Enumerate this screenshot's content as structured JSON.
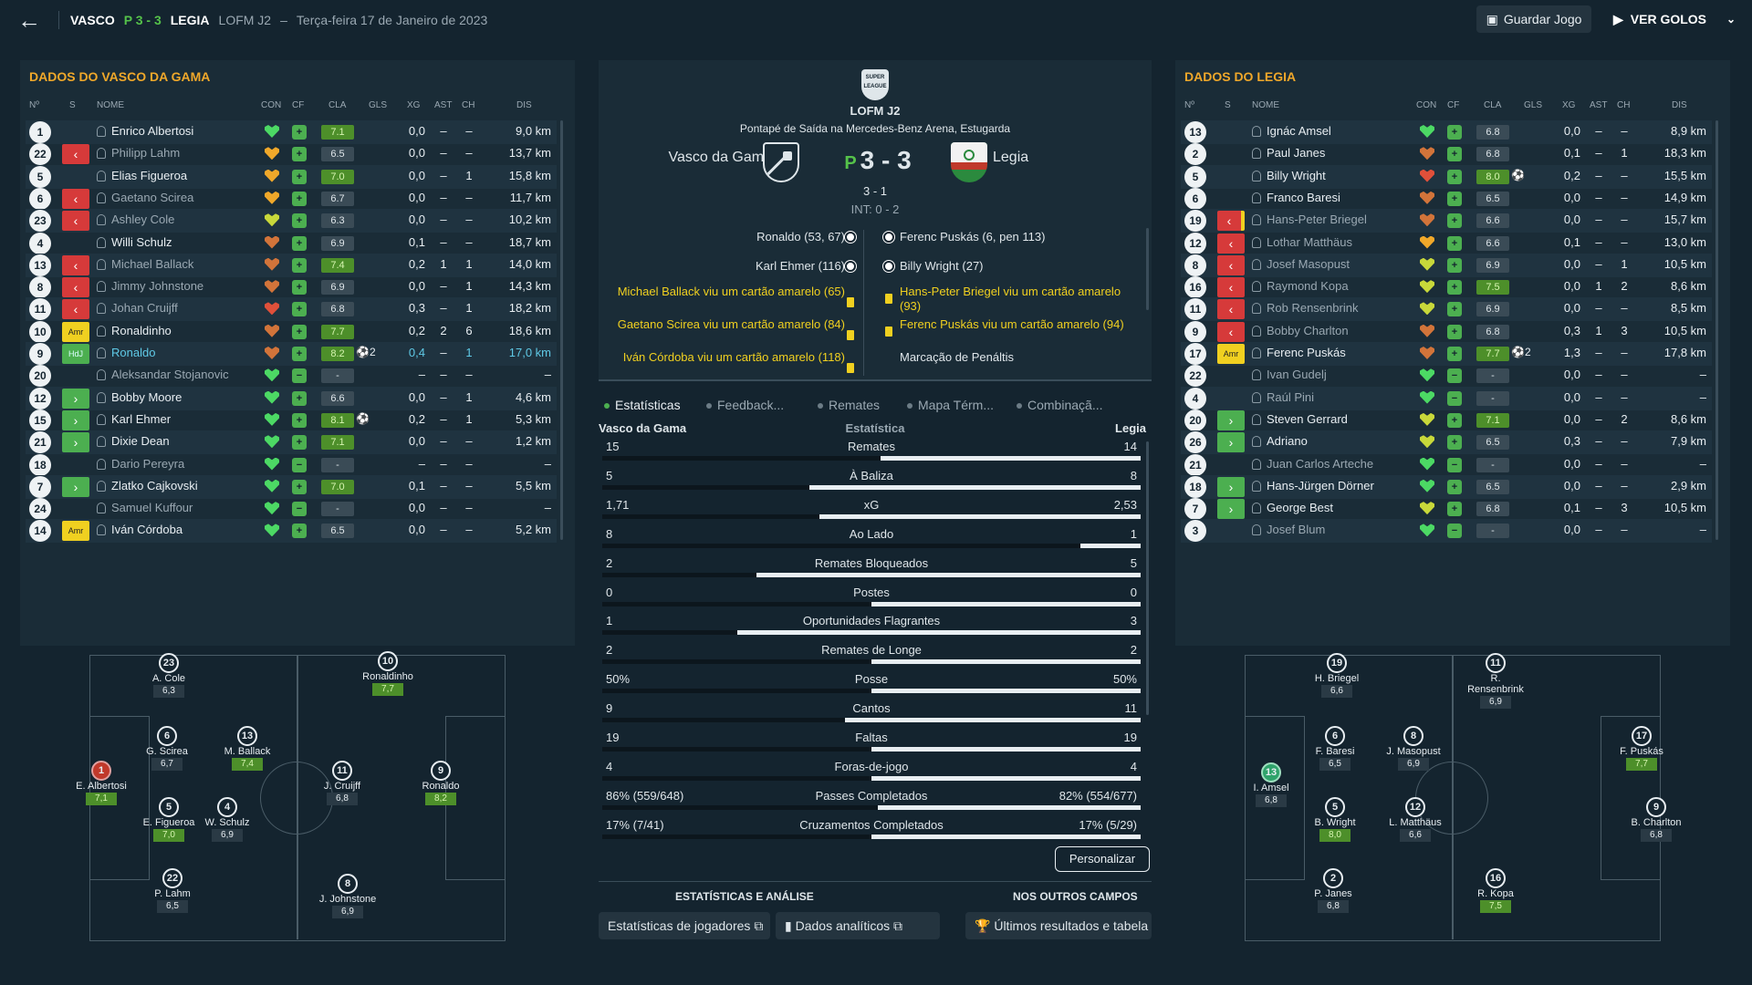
{
  "topbar": {
    "back_icon": "back-arrow-icon",
    "home": "VASCO",
    "score": "P 3 - 3",
    "away": "LEGIA",
    "competition": "LOFM J2",
    "dash": "–",
    "date": "Terça-feira 17 de Janeiro de 2023",
    "save_label": "Guardar Jogo",
    "goals_label": "VER GOLOS"
  },
  "left": {
    "title": "DADOS DO VASCO DA GAMA",
    "headers": {
      "num": "Nº",
      "s": "S",
      "name": "NOME",
      "con": "CON",
      "cf": "CF",
      "cla": "CLA",
      "gls": "GLS",
      "xg": "XG",
      "ast": "AST",
      "ch": "CH",
      "dis": "DIS"
    },
    "players": [
      {
        "num": "1",
        "sub": "",
        "name": "Enrico Albertosi",
        "con": "green",
        "cla": "7.1",
        "ratingGood": true,
        "gls": "",
        "xg": "0,0",
        "ast": "–",
        "ch": "–",
        "dis": "9,0 km",
        "dim": false
      },
      {
        "num": "22",
        "sub": "out",
        "name": "Philipp Lahm",
        "con": "orange",
        "cla": "6.5",
        "ratingGood": false,
        "gls": "",
        "xg": "0,0",
        "ast": "–",
        "ch": "–",
        "dis": "13,7 km",
        "dim": true
      },
      {
        "num": "5",
        "sub": "",
        "name": "Elias Figueroa",
        "con": "orange",
        "cla": "7.0",
        "ratingGood": true,
        "gls": "",
        "xg": "0,0",
        "ast": "–",
        "ch": "1",
        "dis": "15,8 km",
        "dim": false
      },
      {
        "num": "6",
        "sub": "out",
        "name": "Gaetano Scirea",
        "con": "orange",
        "cla": "6.7",
        "ratingGood": false,
        "gls": "",
        "xg": "0,0",
        "ast": "–",
        "ch": "–",
        "dis": "11,7 km",
        "dim": true
      },
      {
        "num": "23",
        "sub": "out",
        "name": "Ashley Cole",
        "con": "yellow",
        "cla": "6.3",
        "ratingGood": false,
        "gls": "",
        "xg": "0,0",
        "ast": "–",
        "ch": "–",
        "dis": "10,2 km",
        "dim": true
      },
      {
        "num": "4",
        "sub": "",
        "name": "Willi Schulz",
        "con": "darkorange",
        "cla": "6.9",
        "ratingGood": false,
        "gls": "",
        "xg": "0,1",
        "ast": "–",
        "ch": "–",
        "dis": "18,7 km",
        "dim": false
      },
      {
        "num": "13",
        "sub": "out",
        "name": "Michael Ballack",
        "con": "darkorange",
        "cla": "7.4",
        "ratingGood": true,
        "gls": "",
        "xg": "0,2",
        "ast": "1",
        "ch": "1",
        "dis": "14,0 km",
        "dim": true
      },
      {
        "num": "8",
        "sub": "out",
        "name": "Jimmy Johnstone",
        "con": "darkorange",
        "cla": "6.9",
        "ratingGood": false,
        "gls": "",
        "xg": "0,0",
        "ast": "–",
        "ch": "1",
        "dis": "14,3 km",
        "dim": true
      },
      {
        "num": "11",
        "sub": "out",
        "name": "Johan Cruijff",
        "con": "red",
        "cla": "6.8",
        "ratingGood": false,
        "gls": "",
        "xg": "0,3",
        "ast": "–",
        "ch": "1",
        "dis": "18,2 km",
        "dim": true
      },
      {
        "num": "10",
        "sub": "amr",
        "name": "Ronaldinho",
        "con": "darkorange",
        "cla": "7.7",
        "ratingGood": true,
        "gls": "",
        "xg": "0,2",
        "ast": "2",
        "ch": "6",
        "dis": "18,6 km",
        "dim": false
      },
      {
        "num": "9",
        "sub": "hdj",
        "name": "Ronaldo",
        "con": "darkorange",
        "cla": "8.2",
        "ratingGood": true,
        "gls": "2",
        "xg": "0,4",
        "ast": "–",
        "ch": "1",
        "dis": "17,0 km",
        "dim": false,
        "hl": true
      },
      {
        "num": "20",
        "sub": "",
        "name": "Aleksandar Stojanovic",
        "con": "green",
        "cla": "-",
        "ratingGood": false,
        "gls": "",
        "xg": "–",
        "ast": "–",
        "ch": "–",
        "dis": "–",
        "dim": true
      },
      {
        "num": "12",
        "sub": "in",
        "name": "Bobby Moore",
        "con": "green",
        "cla": "6.6",
        "ratingGood": false,
        "gls": "",
        "xg": "0,0",
        "ast": "–",
        "ch": "1",
        "dis": "4,6 km",
        "dim": false
      },
      {
        "num": "15",
        "sub": "in",
        "name": "Karl Ehmer",
        "con": "green",
        "cla": "8.1",
        "ratingGood": true,
        "gls": "ball",
        "xg": "0,2",
        "ast": "–",
        "ch": "1",
        "dis": "5,3 km",
        "dim": false
      },
      {
        "num": "21",
        "sub": "in",
        "name": "Dixie Dean",
        "con": "green",
        "cla": "7.1",
        "ratingGood": true,
        "gls": "",
        "xg": "0,0",
        "ast": "–",
        "ch": "–",
        "dis": "1,2 km",
        "dim": false
      },
      {
        "num": "18",
        "sub": "",
        "name": "Dario Pereyra",
        "con": "green",
        "cla": "-",
        "ratingGood": false,
        "gls": "",
        "xg": "–",
        "ast": "–",
        "ch": "–",
        "dis": "–",
        "dim": true
      },
      {
        "num": "7",
        "sub": "in",
        "name": "Zlatko Cajkovski",
        "con": "green",
        "cla": "7.0",
        "ratingGood": true,
        "gls": "",
        "xg": "0,1",
        "ast": "–",
        "ch": "–",
        "dis": "5,5 km",
        "dim": false
      },
      {
        "num": "24",
        "sub": "",
        "name": "Samuel Kuffour",
        "con": "green",
        "cla": "-",
        "ratingGood": false,
        "gls": "",
        "xg": "0,0",
        "ast": "–",
        "ch": "–",
        "dis": "–",
        "dim": true
      },
      {
        "num": "14",
        "sub": "amr",
        "name": "Iván Córdoba",
        "con": "green",
        "cla": "6.5",
        "ratingGood": false,
        "gls": "",
        "xg": "0,0",
        "ast": "–",
        "ch": "–",
        "dis": "5,2 km",
        "dim": false
      }
    ],
    "pitch": [
      {
        "num": "23",
        "name": "A. Cole",
        "rating": "6,3",
        "good": false
      },
      {
        "num": "10",
        "name": "Ronaldinho",
        "rating": "7,7",
        "good": true
      },
      {
        "num": "6",
        "name": "G. Scirea",
        "rating": "6,7",
        "good": false
      },
      {
        "num": "13",
        "name": "M. Ballack",
        "rating": "7,4",
        "good": true
      },
      {
        "num": "1",
        "name": "E. Albertosi",
        "rating": "7,1",
        "good": true,
        "gk": true
      },
      {
        "num": "11",
        "name": "J. Cruijff",
        "rating": "6,8",
        "good": false
      },
      {
        "num": "9",
        "name": "Ronaldo",
        "rating": "8,2",
        "good": true
      },
      {
        "num": "5",
        "name": "E. Figueroa",
        "rating": "7,0",
        "good": true
      },
      {
        "num": "4",
        "name": "W. Schulz",
        "rating": "6,9",
        "good": false
      },
      {
        "num": "22",
        "name": "P. Lahm",
        "rating": "6,5",
        "good": false
      },
      {
        "num": "8",
        "name": "J. Johnstone",
        "rating": "6,9",
        "good": false
      }
    ]
  },
  "right": {
    "title": "DADOS DO LEGIA",
    "players": [
      {
        "num": "13",
        "sub": "",
        "name": "Ignác Amsel",
        "con": "green",
        "cla": "6.8",
        "ratingGood": false,
        "gls": "",
        "xg": "0,0",
        "ast": "–",
        "ch": "–",
        "dis": "8,9 km",
        "dim": false
      },
      {
        "num": "2",
        "sub": "",
        "name": "Paul Janes",
        "con": "darkorange",
        "cla": "6.8",
        "ratingGood": false,
        "gls": "",
        "xg": "0,1",
        "ast": "–",
        "ch": "1",
        "dis": "18,3 km",
        "dim": false
      },
      {
        "num": "5",
        "sub": "",
        "name": "Billy Wright",
        "con": "red",
        "cla": "8.0",
        "ratingGood": true,
        "gls": "ball",
        "xg": "0,2",
        "ast": "–",
        "ch": "–",
        "dis": "15,5 km",
        "dim": false
      },
      {
        "num": "6",
        "sub": "",
        "name": "Franco Baresi",
        "con": "darkorange",
        "cla": "6.5",
        "ratingGood": false,
        "gls": "",
        "xg": "0,0",
        "ast": "–",
        "ch": "–",
        "dis": "14,9 km",
        "dim": false
      },
      {
        "num": "19",
        "sub": "outy",
        "name": "Hans-Peter Briegel",
        "con": "darkorange",
        "cla": "6.6",
        "ratingGood": false,
        "gls": "",
        "xg": "0,0",
        "ast": "–",
        "ch": "–",
        "dis": "15,7 km",
        "dim": true
      },
      {
        "num": "12",
        "sub": "out",
        "name": "Lothar Matthäus",
        "con": "orange",
        "cla": "6.6",
        "ratingGood": false,
        "gls": "",
        "xg": "0,1",
        "ast": "–",
        "ch": "–",
        "dis": "13,0 km",
        "dim": true
      },
      {
        "num": "8",
        "sub": "out",
        "name": "Josef Masopust",
        "con": "yellow",
        "cla": "6.9",
        "ratingGood": false,
        "gls": "",
        "xg": "0,0",
        "ast": "–",
        "ch": "1",
        "dis": "10,5 km",
        "dim": true
      },
      {
        "num": "16",
        "sub": "out",
        "name": "Raymond Kopa",
        "con": "yellow",
        "cla": "7.5",
        "ratingGood": true,
        "gls": "",
        "xg": "0,0",
        "ast": "1",
        "ch": "2",
        "dis": "8,6 km",
        "dim": true
      },
      {
        "num": "11",
        "sub": "out",
        "name": "Rob Rensenbrink",
        "con": "yellow",
        "cla": "6.9",
        "ratingGood": false,
        "gls": "",
        "xg": "0,0",
        "ast": "–",
        "ch": "–",
        "dis": "8,5 km",
        "dim": true
      },
      {
        "num": "9",
        "sub": "out",
        "name": "Bobby Charlton",
        "con": "darkorange",
        "cla": "6.8",
        "ratingGood": false,
        "gls": "",
        "xg": "0,3",
        "ast": "1",
        "ch": "3",
        "dis": "10,5 km",
        "dim": true
      },
      {
        "num": "17",
        "sub": "amr",
        "name": "Ferenc Puskás",
        "con": "darkorange",
        "cla": "7.7",
        "ratingGood": true,
        "gls": "2",
        "xg": "1,3",
        "ast": "–",
        "ch": "–",
        "dis": "17,8 km",
        "dim": false
      },
      {
        "num": "22",
        "sub": "",
        "name": "Ivan Gudelj",
        "con": "green",
        "cla": "-",
        "ratingGood": false,
        "gls": "",
        "xg": "0,0",
        "ast": "–",
        "ch": "–",
        "dis": "–",
        "dim": true
      },
      {
        "num": "4",
        "sub": "",
        "name": "Raúl Pini",
        "con": "green",
        "cla": "-",
        "ratingGood": false,
        "gls": "",
        "xg": "0,0",
        "ast": "–",
        "ch": "–",
        "dis": "–",
        "dim": true
      },
      {
        "num": "20",
        "sub": "in",
        "name": "Steven Gerrard",
        "con": "yellow",
        "cla": "7.1",
        "ratingGood": true,
        "gls": "",
        "xg": "0,0",
        "ast": "–",
        "ch": "2",
        "dis": "8,6 km",
        "dim": false
      },
      {
        "num": "26",
        "sub": "in",
        "name": "Adriano",
        "con": "yellow",
        "cla": "6.5",
        "ratingGood": false,
        "gls": "",
        "xg": "0,3",
        "ast": "–",
        "ch": "–",
        "dis": "7,9 km",
        "dim": false
      },
      {
        "num": "21",
        "sub": "",
        "name": "Juan Carlos Arteche",
        "con": "green",
        "cla": "-",
        "ratingGood": false,
        "gls": "",
        "xg": "0,0",
        "ast": "–",
        "ch": "–",
        "dis": "–",
        "dim": true
      },
      {
        "num": "18",
        "sub": "in",
        "name": "Hans-Jürgen Dörner",
        "con": "green",
        "cla": "6.5",
        "ratingGood": false,
        "gls": "",
        "xg": "0,0",
        "ast": "–",
        "ch": "–",
        "dis": "2,9 km",
        "dim": false
      },
      {
        "num": "7",
        "sub": "in",
        "name": "George Best",
        "con": "yellow",
        "cla": "6.8",
        "ratingGood": false,
        "gls": "",
        "xg": "0,1",
        "ast": "–",
        "ch": "3",
        "dis": "10,5 km",
        "dim": false
      },
      {
        "num": "3",
        "sub": "",
        "name": "Josef Blum",
        "con": "green",
        "cla": "-",
        "ratingGood": false,
        "gls": "",
        "xg": "0,0",
        "ast": "–",
        "ch": "–",
        "dis": "–",
        "dim": true
      }
    ],
    "pitch": [
      {
        "num": "19",
        "name": "H. Briegel",
        "rating": "6,6",
        "good": false
      },
      {
        "num": "11",
        "name": "R. Rensenbrink",
        "rating": "6,9",
        "good": false
      },
      {
        "num": "6",
        "name": "F. Baresi",
        "rating": "6,5",
        "good": false
      },
      {
        "num": "8",
        "name": "J. Masopust",
        "rating": "6,9",
        "good": false
      },
      {
        "num": "17",
        "name": "F. Puskás",
        "rating": "7,7",
        "good": true
      },
      {
        "num": "13",
        "name": "I. Amsel",
        "rating": "6,8",
        "good": false,
        "gk": true
      },
      {
        "num": "5",
        "name": "B. Wright",
        "rating": "8,0",
        "good": true
      },
      {
        "num": "12",
        "name": "L. Matthäus",
        "rating": "6,6",
        "good": false
      },
      {
        "num": "9",
        "name": "B. Charlton",
        "rating": "6,8",
        "good": false
      },
      {
        "num": "2",
        "name": "P. Janes",
        "rating": "6,8",
        "good": false
      },
      {
        "num": "16",
        "name": "R. Kopa",
        "rating": "7,5",
        "good": true
      }
    ]
  },
  "match": {
    "league_logo": "SUPER LEAGUE",
    "league": "LOFM J2",
    "venue": "Pontapé de Saída na Mercedes-Benz Arena, Estugarda",
    "home": "Vasco da Gama",
    "away": "Legia",
    "p": "P",
    "score": "3 - 3",
    "pens": "3 - 1",
    "ht": "INT: 0 - 2",
    "home_events": [
      "Ronaldo (53, 67)",
      "Karl Ehmer (116)",
      "Michael Ballack viu um cartão amarelo (65)",
      "Gaetano Scirea viu um cartão amarelo (84)",
      "Iván Córdoba viu um cartão amarelo (118)"
    ],
    "away_events": [
      "Ferenc Puskás (6, pen 113)",
      "Billy Wright (27)",
      "Hans-Peter Briegel viu um cartão amarelo (93)",
      "Ferenc Puskás viu um cartão amarelo (94)",
      "Marcação de Penáltis"
    ]
  },
  "tabs": [
    "Estatísticas",
    "Feedback...",
    "Remates",
    "Mapa Térm...",
    "Combinaçã..."
  ],
  "stats": {
    "home": "Vasco da Gama",
    "title": "Estatística",
    "away": "Legia",
    "rows": [
      {
        "name": "Remates",
        "h": "15",
        "a": "14",
        "hv": 15,
        "av": 14
      },
      {
        "name": "À Baliza",
        "h": "5",
        "a": "8",
        "hv": 5,
        "av": 8
      },
      {
        "name": "xG",
        "h": "1,71",
        "a": "2,53",
        "hv": 1.71,
        "av": 2.53
      },
      {
        "name": "Ao Lado",
        "h": "8",
        "a": "1",
        "hv": 8,
        "av": 1
      },
      {
        "name": "Remates Bloqueados",
        "h": "2",
        "a": "5",
        "hv": 2,
        "av": 5
      },
      {
        "name": "Postes",
        "h": "0",
        "a": "0",
        "hv": 0,
        "av": 0
      },
      {
        "name": "Oportunidades Flagrantes",
        "h": "1",
        "a": "3",
        "hv": 1,
        "av": 3
      },
      {
        "name": "Remates de Longe",
        "h": "2",
        "a": "2",
        "hv": 2,
        "av": 2
      },
      {
        "name": "Posse",
        "h": "50%",
        "a": "50%",
        "hv": 50,
        "av": 50
      },
      {
        "name": "Cantos",
        "h": "9",
        "a": "11",
        "hv": 9,
        "av": 11
      },
      {
        "name": "Faltas",
        "h": "19",
        "a": "19",
        "hv": 19,
        "av": 19
      },
      {
        "name": "Foras-de-jogo",
        "h": "4",
        "a": "4",
        "hv": 4,
        "av": 4
      },
      {
        "name": "Passes Completados",
        "h": "86% (559/648)",
        "a": "82% (554/677)",
        "hv": 86,
        "av": 82
      },
      {
        "name": "Cruzamentos Completados",
        "h": "17% (7/41)",
        "a": "17% (5/29)",
        "hv": 17,
        "av": 17
      }
    ],
    "customize": "Personalizar"
  },
  "bottom": {
    "h1": "ESTATÍSTICAS E ANÁLISE",
    "h2": "NOS OUTROS CAMPOS",
    "b1": "Estatísticas de jogadores",
    "b2": "Dados analíticos",
    "b3": "Últimos resultados e tabela"
  },
  "colors": {
    "accent": "#f0a82a",
    "good": "#4d8f2a",
    "green": "#4caf50",
    "red": "#d63a3a",
    "yellow": "#f0d020"
  }
}
